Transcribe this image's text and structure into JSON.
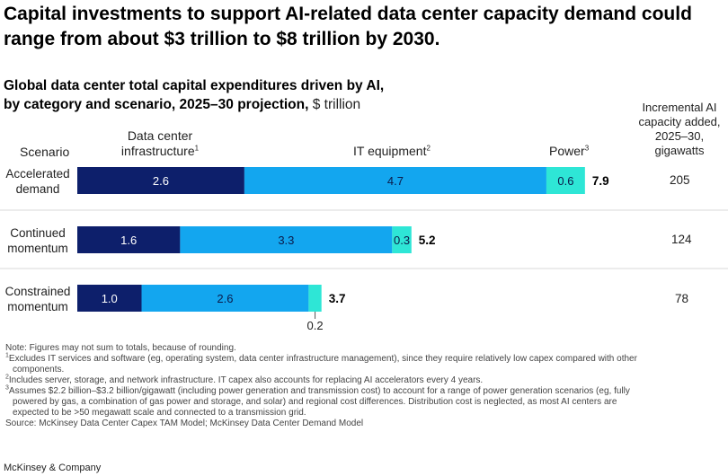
{
  "headline": "Capital investments to support AI-related data center capacity demand could range from about $3 trillion to $8 trillion by 2030.",
  "subtitle": {
    "line1": "Global data center total capital expenditures driven by AI,",
    "line2": "by category and scenario, 2025–30 projection,",
    "unit": "$ trillion"
  },
  "columns": {
    "scenario": "Scenario",
    "infra_line1": "Data center",
    "infra_line2": "infrastructure",
    "infra_sup": "1",
    "it": "IT equipment",
    "it_sup": "2",
    "power": "Power",
    "power_sup": "3",
    "gw_line1": "Incremental AI",
    "gw_line2": "capacity added,",
    "gw_line3": "2025–30,",
    "gw_line4": "gigawatts"
  },
  "rows": [
    {
      "label_line1": "Accelerated",
      "label_line2": "demand",
      "gigawatts": "205"
    },
    {
      "label_line1": "Continued",
      "label_line2": "momentum",
      "gigawatts": "124"
    },
    {
      "label_line1": "Constrained",
      "label_line2": "momentum",
      "gigawatts": "78"
    }
  ],
  "chart_data": {
    "type": "bar",
    "orientation": "horizontal",
    "stacked": true,
    "categories": [
      "Accelerated demand",
      "Continued momentum",
      "Constrained momentum"
    ],
    "series": [
      {
        "name": "Data center infrastructure",
        "values": [
          2.6,
          1.6,
          1.0
        ],
        "labels": [
          "2.6",
          "1.6",
          "1.0"
        ],
        "color": "#0d1f6b",
        "label_color": "#ffffff"
      },
      {
        "name": "IT equipment",
        "values": [
          4.7,
          3.3,
          2.6
        ],
        "labels": [
          "4.7",
          "3.3",
          "2.6"
        ],
        "color": "#13a6ef",
        "label_color": "#0b1a4a"
      },
      {
        "name": "Power",
        "values": [
          0.6,
          0.3,
          0.2
        ],
        "labels": [
          "0.6",
          "0.3",
          "0.2"
        ],
        "color": "#2ee6d6",
        "label_color": "#0b1a4a"
      }
    ],
    "totals": [
      7.9,
      5.2,
      3.7
    ],
    "total_labels": [
      "7.9",
      "5.2",
      "3.7"
    ],
    "xlim": [
      0,
      7.9
    ]
  },
  "notes": {
    "note": "Note: Figures may not sum to totals, because of rounding.",
    "fn1_sup": "1",
    "fn1a": "Excludes IT services and software (eg, operating system, data center infrastructure management), since they require relatively low capex compared with other",
    "fn1b": "components.",
    "fn2_sup": "2",
    "fn2": "Includes server, storage, and network infrastructure. IT capex also accounts for replacing AI accelerators every 4 years.",
    "fn3_sup": "3",
    "fn3a": "Assumes $2.2 billion–$3.2 billion/gigawatt (including power generation and transmission cost) to account for a range of power generation scenarios (eg, fully",
    "fn3b": "powered by gas, a combination of gas power and storage, and solar) and regional cost differences. Distribution cost is neglected, as most AI centers are",
    "fn3c": "expected to be >50 megawatt scale and connected to a transmission grid.",
    "source": "Source: McKinsey Data Center Capex TAM Model; McKinsey Data Center Demand Model"
  },
  "brand": "McKinsey & Company"
}
